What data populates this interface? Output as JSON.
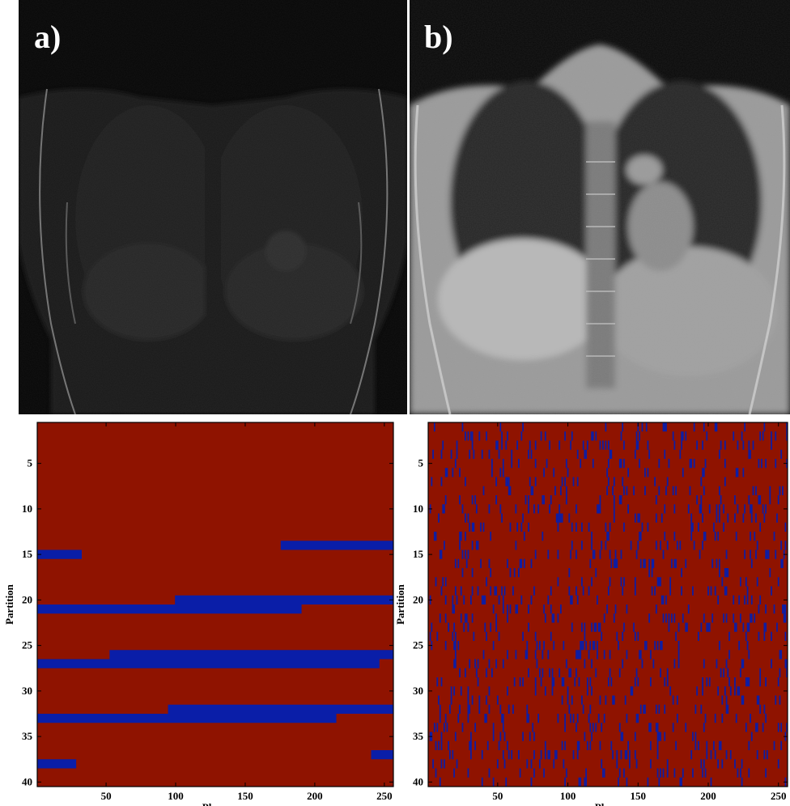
{
  "panels": [
    {
      "label": "a)"
    },
    {
      "label": "b)"
    }
  ],
  "chart_data": [
    {
      "type": "heatmap",
      "xlabel": "Phase",
      "ylabel": "Partition",
      "xlim": [
        1,
        256
      ],
      "ylim": [
        1,
        40
      ],
      "y_inverted": true,
      "xticks": [
        50,
        100,
        150,
        200,
        250
      ],
      "yticks": [
        5,
        10,
        15,
        20,
        25,
        30,
        35,
        40
      ],
      "colors": {
        "not_sampled": "#8f1300",
        "sampled": "#0a1ea8"
      },
      "sampled_segments": [
        {
          "partition": 14,
          "phase_start": 176,
          "phase_end": 256
        },
        {
          "partition": 15,
          "phase_start": 1,
          "phase_end": 32
        },
        {
          "partition": 20,
          "phase_start": 100,
          "phase_end": 256
        },
        {
          "partition": 21,
          "phase_start": 1,
          "phase_end": 190
        },
        {
          "partition": 26,
          "phase_start": 53,
          "phase_end": 256
        },
        {
          "partition": 27,
          "phase_start": 1,
          "phase_end": 246
        },
        {
          "partition": 32,
          "phase_start": 95,
          "phase_end": 256
        },
        {
          "partition": 33,
          "phase_start": 1,
          "phase_end": 215
        },
        {
          "partition": 37,
          "phase_start": 241,
          "phase_end": 256
        },
        {
          "partition": 38,
          "phase_start": 1,
          "phase_end": 28
        }
      ]
    },
    {
      "type": "heatmap",
      "xlabel": "Phase",
      "ylabel": "Partition",
      "xlim": [
        1,
        256
      ],
      "ylim": [
        1,
        40
      ],
      "y_inverted": true,
      "xticks": [
        50,
        100,
        150,
        200,
        250
      ],
      "yticks": [
        5,
        10,
        15,
        20,
        25,
        30,
        35,
        40
      ],
      "colors": {
        "not_sampled": "#8f1300",
        "sampled": "#0a1ea8"
      },
      "pattern": "random",
      "sampled_fraction": 0.1
    }
  ]
}
